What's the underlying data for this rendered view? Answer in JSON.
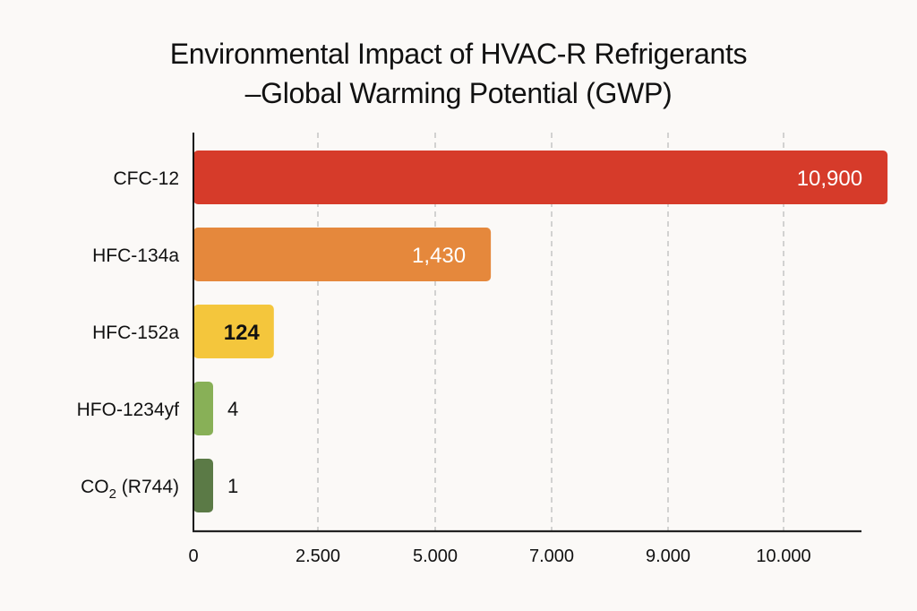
{
  "chart_data": {
    "type": "bar",
    "orientation": "horizontal",
    "title_line1": "Environmental Impact of HVAC-R Refrigerants",
    "title_line2": "–Global Warming Potential (GWP)",
    "xlabel": "",
    "ylabel": "",
    "categories": [
      "CFC-12",
      "HFC-134a",
      "HFC-152a",
      "HFO-1234yf",
      "CO₂ (R744)"
    ],
    "values": [
      10900,
      1430,
      124,
      4,
      1
    ],
    "value_labels": [
      "10,900",
      "1,430",
      "124",
      "4",
      "1"
    ],
    "colors": [
      "#d63b2a",
      "#e5883c",
      "#f4c63c",
      "#88b057",
      "#5b7a46"
    ],
    "x_ticks": [
      {
        "value": 0,
        "label": "0"
      },
      {
        "value": 2500,
        "label": "2.500"
      },
      {
        "value": 5000,
        "label": "5.000"
      },
      {
        "value": 7000,
        "label": "7.000"
      },
      {
        "value": 9000,
        "label": "9.000"
      },
      {
        "value": 10000,
        "label": "10.000"
      }
    ],
    "grid": true,
    "grid_style": "dashed-vertical",
    "legend": "none"
  }
}
